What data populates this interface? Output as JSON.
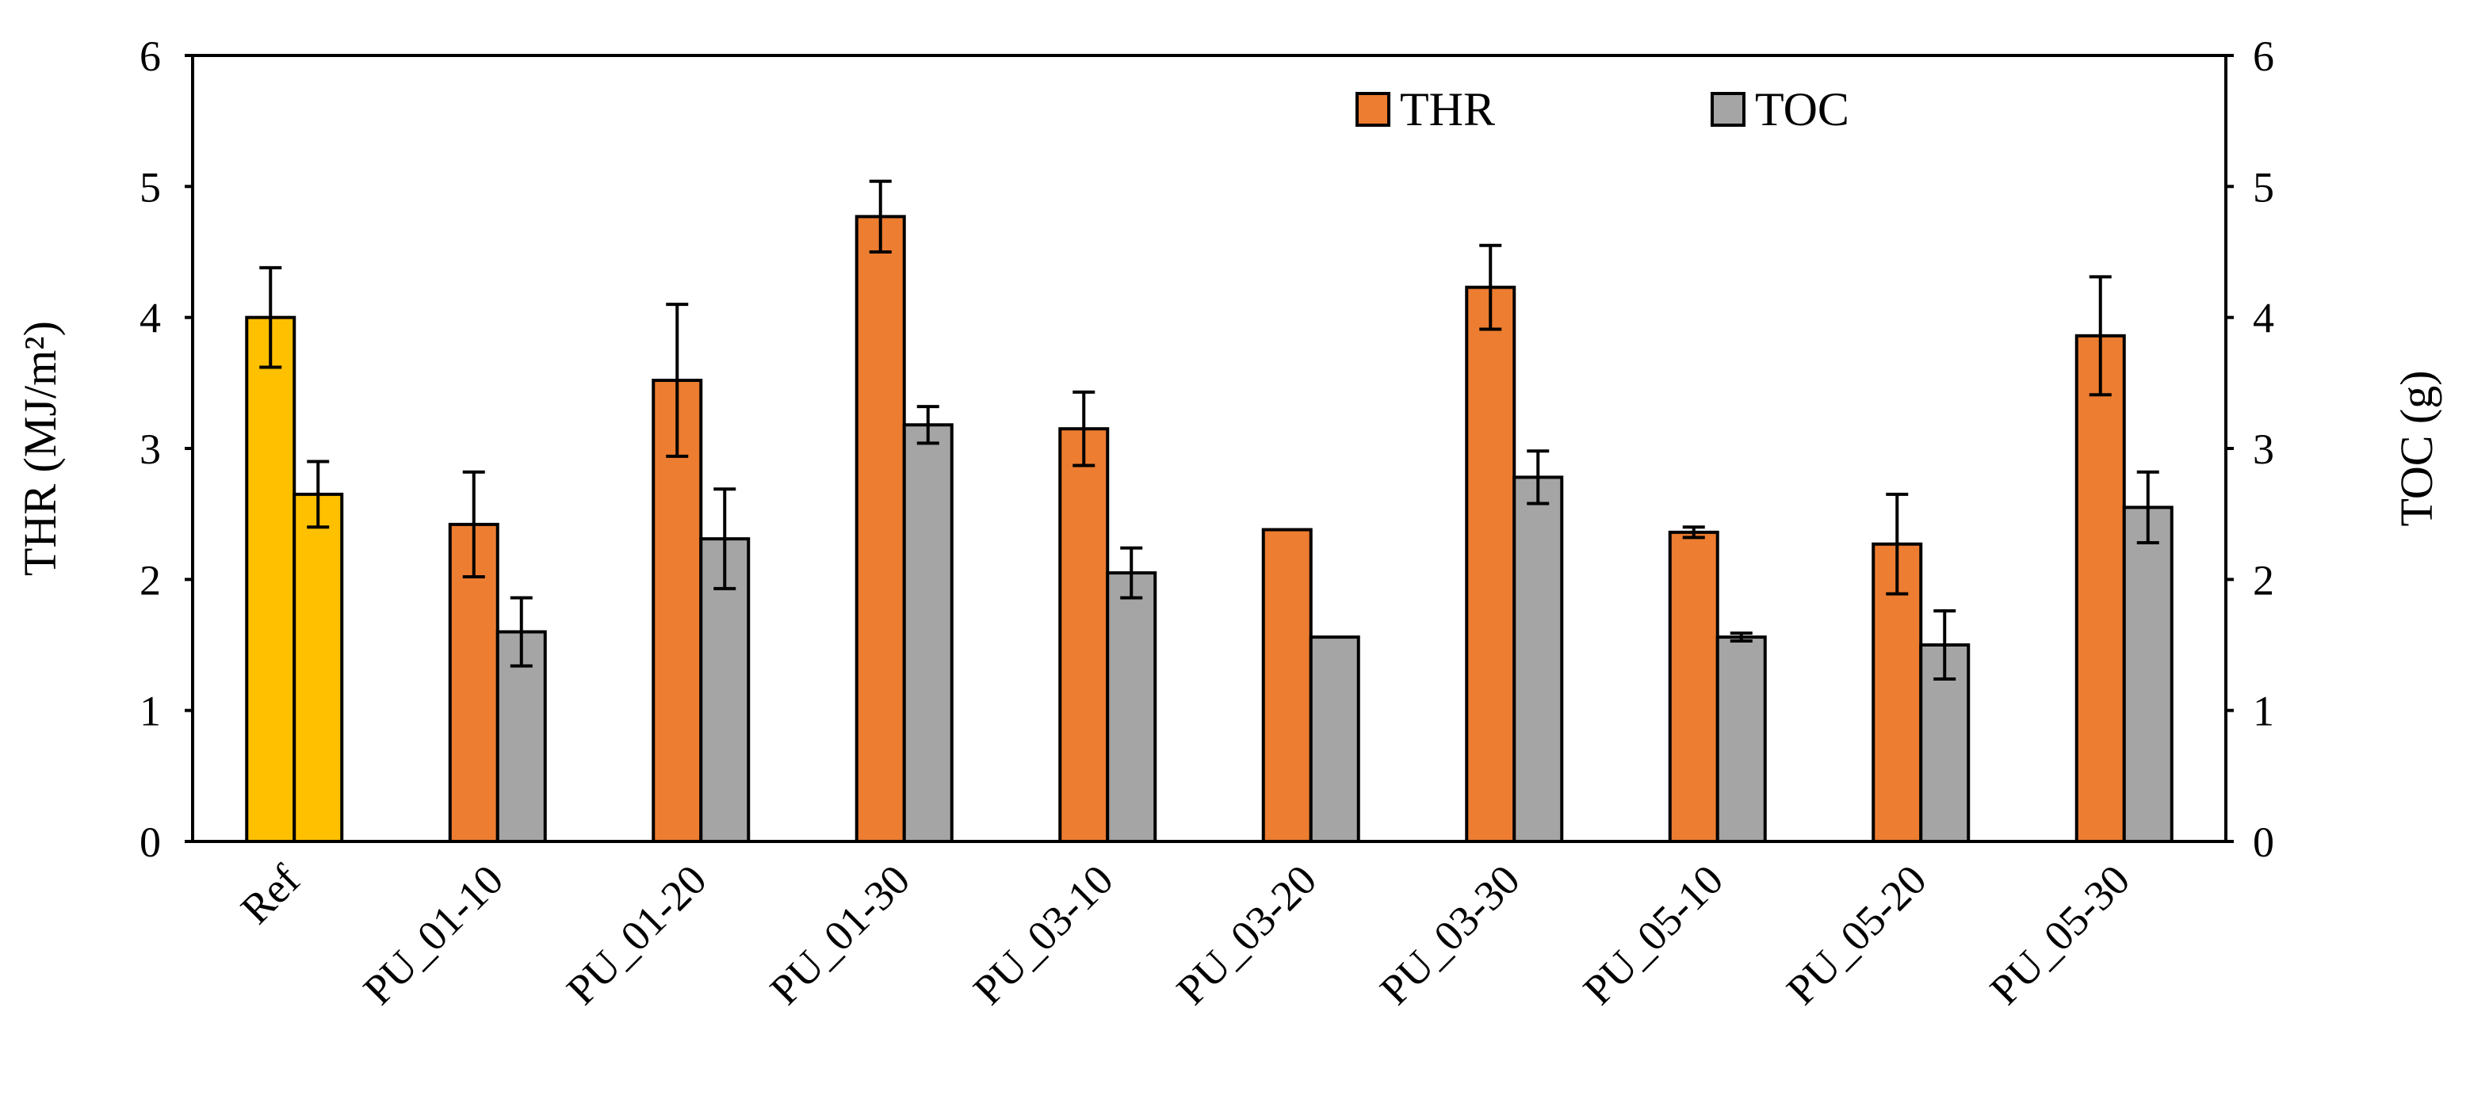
{
  "chart_data": {
    "type": "bar",
    "categories": [
      "Ref",
      "PU_01-10",
      "PU_01-20",
      "PU_01-30",
      "PU_03-10",
      "PU_03-20",
      "PU_03-30",
      "PU_05-10",
      "PU_05-20",
      "PU_05-30"
    ],
    "series": [
      {
        "name": "THR",
        "axis": "left",
        "color": "#ED7D31",
        "values": [
          4.0,
          2.42,
          3.52,
          4.77,
          3.15,
          2.38,
          4.23,
          2.36,
          2.27,
          3.86
        ],
        "errors": [
          0.38,
          0.4,
          0.58,
          0.27,
          0.28,
          0.0,
          0.32,
          0.04,
          0.38,
          0.45
        ]
      },
      {
        "name": "TOC",
        "axis": "right",
        "color": "#A5A5A5",
        "values": [
          2.65,
          1.6,
          2.31,
          3.18,
          2.05,
          1.56,
          2.78,
          1.56,
          1.5,
          2.55
        ],
        "errors": [
          0.25,
          0.26,
          0.38,
          0.14,
          0.19,
          0.0,
          0.2,
          0.03,
          0.26,
          0.27
        ]
      }
    ],
    "highlight": {
      "category_index": 0,
      "color": "#FFC000"
    },
    "left_axis": {
      "label": "THR (MJ/m²)",
      "ylim": [
        0,
        6
      ],
      "ticks": [
        "0",
        "1",
        "2",
        "3",
        "4",
        "5",
        "6"
      ]
    },
    "right_axis": {
      "label": "TOC (g)",
      "ylim": [
        0,
        6
      ],
      "ticks": [
        "0",
        "1",
        "2",
        "3",
        "4",
        "5",
        "6"
      ]
    },
    "legend": {
      "position": "top-right",
      "entries": [
        "THR",
        "TOC"
      ]
    },
    "grid": false,
    "title": ""
  }
}
